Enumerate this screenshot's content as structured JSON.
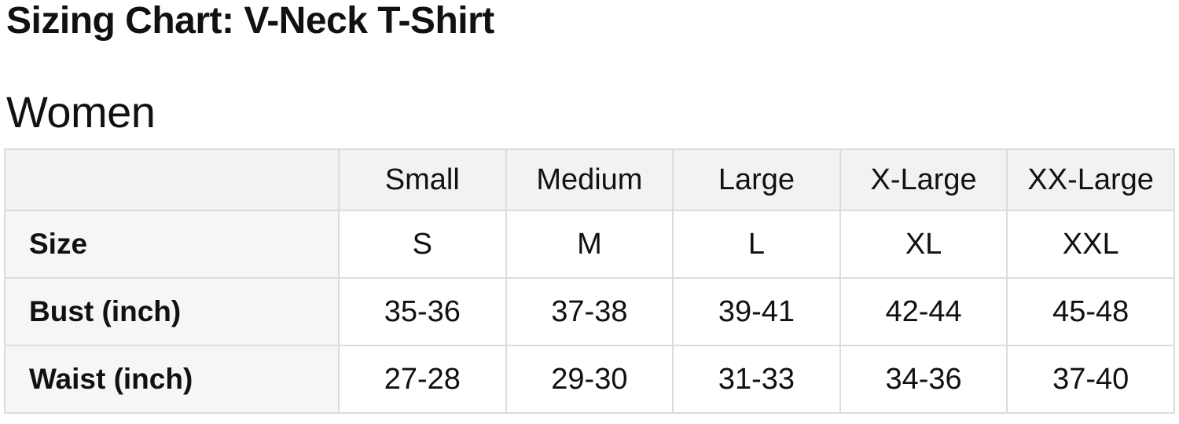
{
  "page": {
    "title": "Sizing Chart: V-Neck T-Shirt",
    "section_heading": "Women"
  },
  "chart_data": {
    "type": "table",
    "title": "Sizing Chart: V-Neck T-Shirt",
    "section": "Women",
    "columns": [
      "",
      "Small",
      "Medium",
      "Large",
      "X-Large",
      "XX-Large"
    ],
    "rows": [
      {
        "label": "Size",
        "values": [
          "S",
          "M",
          "L",
          "XL",
          "XXL"
        ]
      },
      {
        "label": "Bust (inch)",
        "values": [
          "35-36",
          "37-38",
          "39-41",
          "42-44",
          "45-48"
        ]
      },
      {
        "label": "Waist (inch)",
        "values": [
          "27-28",
          "29-30",
          "31-33",
          "34-36",
          "37-40"
        ]
      }
    ]
  },
  "colors": {
    "page_bg": "#ffffff",
    "text": "#111111",
    "border": "#dcdcda",
    "header_bg": "#f2f2f1",
    "label_column_bg": "#f6f6f5",
    "cell_bg": "#ffffff"
  }
}
